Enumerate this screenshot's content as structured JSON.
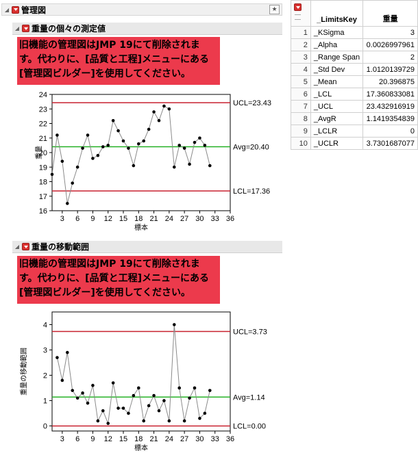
{
  "report": {
    "title": "管理図",
    "section1": {
      "title": "重量の個々の測定値",
      "warning": "旧機能の管理図はJMP 19にて削除されます。代わりに、[品質と工程]メニューにある[管理図ビルダー]を使用してください。"
    },
    "section2": {
      "title": "重量の移動範囲",
      "warning": "旧機能の管理図はJMP 19にて削除されます。代わりに、[品質と工程]メニューにある[管理図ビルダー]を使用してください。"
    }
  },
  "colors": {
    "limit_line": "#c8202f",
    "center_line": "#22b022",
    "hotspot": "#d9312f",
    "warning_bg": "#ec3a4c"
  },
  "chart_data": [
    {
      "type": "line",
      "xlabel": "標本",
      "ylabel": "重量",
      "xlim": [
        1,
        36
      ],
      "ylim": [
        16,
        24
      ],
      "xticks": [
        3,
        6,
        9,
        12,
        15,
        18,
        21,
        24,
        27,
        30,
        33,
        36
      ],
      "yticks": [
        16,
        17,
        18,
        19,
        20,
        21,
        22,
        23,
        24
      ],
      "x": [
        1,
        2,
        3,
        4,
        5,
        6,
        7,
        8,
        9,
        10,
        11,
        12,
        13,
        14,
        15,
        16,
        17,
        18,
        19,
        20,
        21,
        22,
        23,
        24,
        25,
        26,
        27,
        28,
        29,
        30,
        31,
        32
      ],
      "values": [
        18.5,
        21.2,
        19.4,
        16.5,
        17.9,
        19.0,
        20.3,
        21.2,
        19.6,
        19.8,
        20.4,
        20.5,
        22.2,
        21.5,
        20.8,
        20.3,
        19.1,
        20.6,
        20.8,
        21.6,
        22.8,
        22.2,
        23.2,
        23.0,
        19.0,
        20.5,
        20.3,
        19.2,
        20.7,
        21.0,
        20.5,
        19.1
      ],
      "ucl": 23.43,
      "center": 20.4,
      "lcl": 17.36,
      "ucl_label": "UCL=23.43",
      "center_label": "Avg=20.40",
      "lcl_label": "LCL=17.36"
    },
    {
      "type": "line",
      "xlabel": "標本",
      "ylabel": "重量の移動範囲",
      "xlim": [
        1,
        36
      ],
      "ylim": [
        -0.2,
        4.5
      ],
      "xticks": [
        3,
        6,
        9,
        12,
        15,
        18,
        21,
        24,
        27,
        30,
        33,
        36
      ],
      "yticks": [
        0,
        1,
        2,
        3,
        4
      ],
      "x": [
        2,
        3,
        4,
        5,
        6,
        7,
        8,
        9,
        10,
        11,
        12,
        13,
        14,
        15,
        16,
        17,
        18,
        19,
        20,
        21,
        22,
        23,
        24,
        25,
        26,
        27,
        28,
        29,
        30,
        31,
        32
      ],
      "values": [
        2.7,
        1.8,
        2.9,
        1.4,
        1.1,
        1.3,
        0.9,
        1.6,
        0.2,
        0.6,
        0.1,
        1.7,
        0.7,
        0.7,
        0.5,
        1.2,
        1.5,
        0.2,
        0.8,
        1.2,
        0.6,
        1.0,
        0.2,
        4.0,
        1.5,
        0.2,
        1.1,
        1.5,
        0.3,
        0.5,
        1.4
      ],
      "ucl": 3.73,
      "center": 1.14,
      "lcl": 0.0,
      "ucl_label": "UCL=3.73",
      "center_label": "Avg=1.14",
      "lcl_label": "LCL=0.00"
    }
  ],
  "table": {
    "columns": [
      "_LimitsKey",
      "重量"
    ],
    "rows": [
      {
        "n": "1",
        "key": "_KSigma",
        "val": "3"
      },
      {
        "n": "2",
        "key": "_Alpha",
        "val": "0.0026997961"
      },
      {
        "n": "3",
        "key": "_Range Span",
        "val": "2"
      },
      {
        "n": "4",
        "key": "_Std Dev",
        "val": "1.0120139729"
      },
      {
        "n": "5",
        "key": "_Mean",
        "val": "20.396875"
      },
      {
        "n": "6",
        "key": "_LCL",
        "val": "17.360833081"
      },
      {
        "n": "7",
        "key": "_UCL",
        "val": "23.432916919"
      },
      {
        "n": "8",
        "key": "_AvgR",
        "val": "1.1419354839"
      },
      {
        "n": "9",
        "key": "_LCLR",
        "val": "0"
      },
      {
        "n": "10",
        "key": "_UCLR",
        "val": "3.7301687077"
      }
    ]
  }
}
